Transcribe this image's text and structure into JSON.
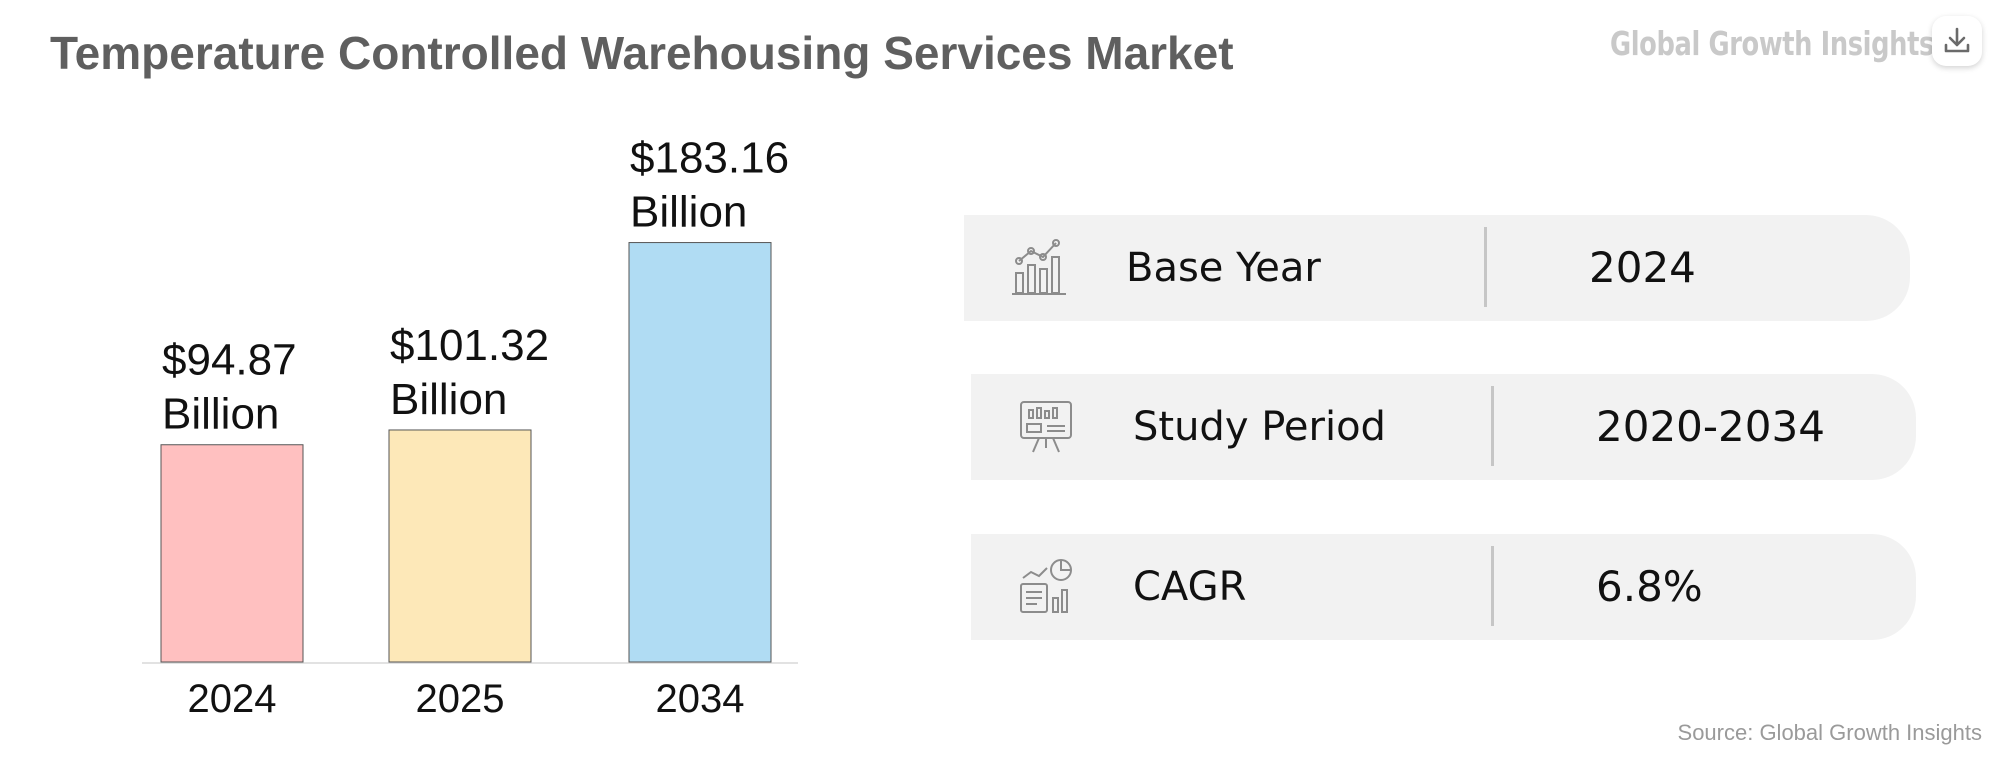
{
  "header": {
    "title": "Temperature Controlled Warehousing Services Market",
    "brand": "Global Growth Insights"
  },
  "toolbar": {
    "download_icon": "download-icon"
  },
  "chart_data": {
    "type": "bar",
    "title": "Temperature Controlled Warehousing Services Market",
    "categories": [
      "2024",
      "2025",
      "2034"
    ],
    "values": [
      94.87,
      101.32,
      183.16
    ],
    "value_labels": [
      [
        "$94.87",
        "Billion"
      ],
      [
        "$101.32",
        "Billion"
      ],
      [
        "$183.16",
        "Billion"
      ]
    ],
    "colors": [
      "#ffc0c0",
      "#fde8b8",
      "#b0dcf3"
    ],
    "xlabel": "",
    "ylabel": "",
    "ylim": [
      0,
      200
    ],
    "grid": false,
    "legend": "none"
  },
  "stats": [
    {
      "icon": "chart-analytics-icon",
      "label": "Base Year",
      "value": "2024"
    },
    {
      "icon": "presentation-board-icon",
      "label": "Study Period",
      "value": "2020-2034"
    },
    {
      "icon": "growth-report-icon",
      "label": "CAGR",
      "value": "6.8%"
    }
  ],
  "footer": {
    "source": "Source: Global Growth Insights"
  }
}
